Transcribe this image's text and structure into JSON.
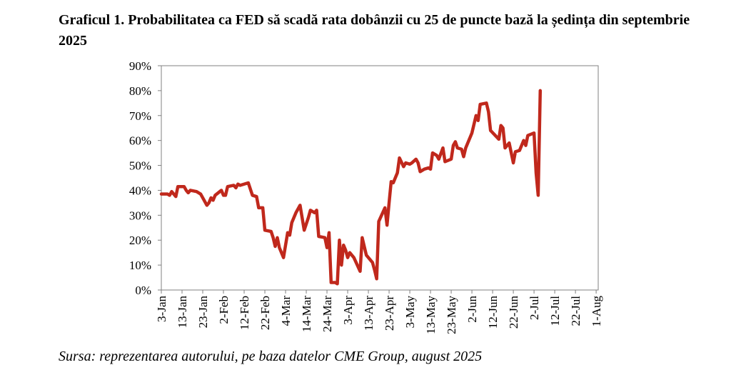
{
  "title": "Graficul 1. Probabilitatea ca FED să scadă rata dobânzii cu 25 de puncte bază la ședința din septembrie 2025",
  "source": "Sursa: reprezentarea autorului, pe baza datelor CME Group, august 2025",
  "chart_data": {
    "type": "line",
    "line_color": "#C0281C",
    "ylim": [
      0,
      90
    ],
    "y_ticks": [
      0,
      10,
      20,
      30,
      40,
      50,
      60,
      70,
      80,
      90
    ],
    "y_tick_labels": [
      "0%",
      "10%",
      "20%",
      "30%",
      "40%",
      "50%",
      "60%",
      "70%",
      "80%",
      "90%"
    ],
    "x_ticks": [
      "3-Jan",
      "13-Jan",
      "23-Jan",
      "2-Feb",
      "12-Feb",
      "22-Feb",
      "4-Mar",
      "14-Mar",
      "24-Mar",
      "3-Apr",
      "13-Apr",
      "23-Apr",
      "3-May",
      "13-May",
      "23-May",
      "2-Jun",
      "12-Jun",
      "22-Jun",
      "2-Jul",
      "12-Jul",
      "22-Jul",
      "1-Aug"
    ],
    "x_range_days": [
      0,
      211
    ],
    "grid": false,
    "legend": "none",
    "series": [
      {
        "points": [
          [
            0,
            38.5
          ],
          [
            3,
            38.5
          ],
          [
            4,
            38
          ],
          [
            5,
            39.5
          ],
          [
            7,
            37.5
          ],
          [
            8,
            41.5
          ],
          [
            11,
            41.5
          ],
          [
            12,
            40
          ],
          [
            13,
            39
          ],
          [
            14,
            40
          ],
          [
            17,
            39.5
          ],
          [
            19,
            38.5
          ],
          [
            20,
            37
          ],
          [
            22,
            34
          ],
          [
            23,
            35
          ],
          [
            24,
            37
          ],
          [
            25,
            36
          ],
          [
            26,
            38
          ],
          [
            29,
            40
          ],
          [
            30,
            38
          ],
          [
            31,
            38
          ],
          [
            32,
            41.5
          ],
          [
            35,
            42
          ],
          [
            36,
            41
          ],
          [
            37,
            42.5
          ],
          [
            38,
            42
          ],
          [
            40,
            42.5
          ],
          [
            42,
            43
          ],
          [
            44,
            38
          ],
          [
            46,
            37.5
          ],
          [
            47,
            33
          ],
          [
            49,
            33
          ],
          [
            50,
            24
          ],
          [
            53,
            23.5
          ],
          [
            54,
            21
          ],
          [
            55,
            17.5
          ],
          [
            56,
            21
          ],
          [
            57,
            17
          ],
          [
            59,
            13
          ],
          [
            61,
            23
          ],
          [
            62,
            22
          ],
          [
            63,
            27
          ],
          [
            65,
            31
          ],
          [
            67,
            34
          ],
          [
            69,
            24
          ],
          [
            71,
            29
          ],
          [
            72,
            32
          ],
          [
            74,
            31
          ],
          [
            75,
            32
          ],
          [
            76,
            21.5
          ],
          [
            79,
            21
          ],
          [
            80,
            17
          ],
          [
            81,
            23
          ],
          [
            82,
            3
          ],
          [
            84,
            3
          ],
          [
            85,
            2.5
          ],
          [
            86,
            20
          ],
          [
            87,
            10
          ],
          [
            88,
            18
          ],
          [
            89,
            16
          ],
          [
            90,
            13
          ],
          [
            91,
            15
          ],
          [
            93,
            13
          ],
          [
            96,
            7.5
          ],
          [
            97,
            21
          ],
          [
            99,
            14
          ],
          [
            102,
            11
          ],
          [
            103,
            8
          ],
          [
            104,
            4.5
          ],
          [
            105,
            27.5
          ],
          [
            108,
            33
          ],
          [
            109,
            26
          ],
          [
            110,
            35
          ],
          [
            111,
            43.5
          ],
          [
            112,
            43
          ],
          [
            114,
            47
          ],
          [
            115,
            53
          ],
          [
            117,
            49.5
          ],
          [
            118,
            51
          ],
          [
            120,
            50.5
          ],
          [
            121,
            51
          ],
          [
            123,
            52.5
          ],
          [
            124,
            51
          ],
          [
            125,
            47.5
          ],
          [
            127,
            48.5
          ],
          [
            129,
            49
          ],
          [
            130,
            48.5
          ],
          [
            131,
            55
          ],
          [
            133,
            54
          ],
          [
            134,
            52.5
          ],
          [
            136,
            57
          ],
          [
            137,
            51.5
          ],
          [
            140,
            52.5
          ],
          [
            141,
            58
          ],
          [
            142,
            59.5
          ],
          [
            143,
            57
          ],
          [
            145,
            56.5
          ],
          [
            146,
            53.5
          ],
          [
            147,
            57
          ],
          [
            150,
            63
          ],
          [
            152,
            70
          ],
          [
            153,
            68
          ],
          [
            154,
            74.5
          ],
          [
            157,
            75
          ],
          [
            158,
            71.5
          ],
          [
            159,
            64
          ],
          [
            163,
            60.5
          ],
          [
            164,
            66
          ],
          [
            165,
            65
          ],
          [
            166,
            57
          ],
          [
            168,
            59
          ],
          [
            169,
            55
          ],
          [
            170,
            51
          ],
          [
            171,
            55.5
          ],
          [
            173,
            56
          ],
          [
            175,
            60
          ],
          [
            176,
            58
          ],
          [
            177,
            62
          ],
          [
            180,
            63
          ],
          [
            181,
            47
          ],
          [
            182,
            38
          ],
          [
            183,
            80
          ]
        ]
      }
    ]
  }
}
